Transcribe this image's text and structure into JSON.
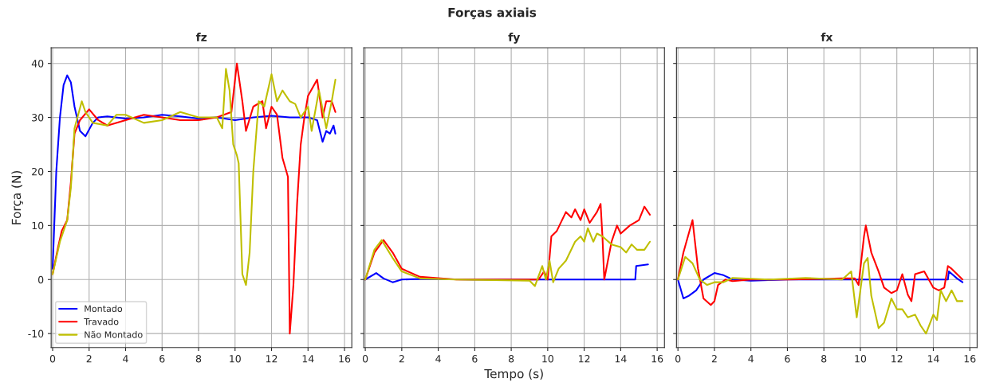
{
  "chart_data": [
    {
      "type": "line",
      "title": "fz",
      "ylabel": "Força (N)",
      "annotations": [
        "Forças axiais"
      ],
      "xlim": [
        -0.08,
        16.4
      ],
      "ylim": [
        -12.6,
        42.9
      ],
      "xticks": [
        0,
        2,
        4,
        6,
        8,
        10,
        12,
        14,
        16
      ],
      "yticks": [
        -10,
        0,
        10,
        20,
        30,
        40
      ],
      "grid": true,
      "legend": "bottom left",
      "series": [
        {
          "name": "Montado",
          "color": "#0000ff",
          "x": [
            0,
            0.2,
            0.4,
            0.6,
            0.8,
            1.0,
            1.2,
            1.5,
            1.8,
            2.2,
            2.5,
            3,
            4,
            5,
            6,
            7,
            8,
            9,
            10,
            11,
            12,
            13,
            14,
            14.5,
            14.8,
            15,
            15.2,
            15.4,
            15.5
          ],
          "values": [
            2,
            20,
            30,
            36,
            37.8,
            36.5,
            32,
            27.5,
            26.5,
            29,
            30,
            30.2,
            29.8,
            30,
            30.5,
            30.2,
            29.8,
            30,
            29.5,
            30,
            30.3,
            30,
            30,
            29.5,
            25.5,
            27.5,
            27,
            28.5,
            27
          ]
        },
        {
          "name": "Travado",
          "color": "#ff0000",
          "x": [
            0,
            0.3,
            0.5,
            0.8,
            1.0,
            1.2,
            1.5,
            2.0,
            2.5,
            3,
            4,
            5,
            6,
            7,
            8,
            9,
            9.8,
            10.1,
            10.4,
            10.6,
            11,
            11.5,
            11.7,
            12,
            12.3,
            12.6,
            12.9,
            13.0,
            13.2,
            13.4,
            13.6,
            13.8,
            14,
            14.5,
            14.8,
            15,
            15.3,
            15.5
          ],
          "values": [
            1,
            6,
            9,
            11,
            18,
            27,
            29.5,
            31.5,
            29.5,
            28.5,
            29.5,
            30.5,
            30,
            29.5,
            29.5,
            30,
            31,
            40,
            33,
            27.5,
            32,
            33,
            28,
            32,
            30.5,
            22.5,
            19,
            -10,
            -1,
            14,
            25,
            30,
            34,
            37,
            30,
            33,
            33,
            31
          ]
        },
        {
          "name": "Não Montado",
          "color": "#bfbf00",
          "x": [
            0,
            0.4,
            0.8,
            1.0,
            1.2,
            1.6,
            1.8,
            2.2,
            3,
            3.5,
            4,
            5,
            6,
            7,
            8,
            9,
            9.3,
            9.5,
            9.7,
            9.9,
            10.1,
            10.2,
            10.4,
            10.6,
            10.8,
            11.0,
            11.3,
            11.6,
            12,
            12.3,
            12.6,
            13,
            13.3,
            13.6,
            14,
            14.2,
            14.6,
            15,
            15.3,
            15.5
          ],
          "values": [
            1,
            7,
            11,
            17,
            28,
            33,
            31,
            29,
            28.5,
            30.5,
            30.5,
            29,
            29.5,
            31,
            30,
            30,
            28,
            39,
            35,
            25,
            23,
            21.5,
            1,
            -1,
            5,
            20,
            33,
            32,
            38,
            33,
            35,
            33,
            32.5,
            30,
            32,
            27.5,
            35,
            28,
            33,
            37
          ]
        }
      ]
    },
    {
      "type": "line",
      "title": "fy",
      "xlabel": "Tempo (s)",
      "tick_labels": "x",
      "xlim": [
        -0.08,
        16.4
      ],
      "ylim": [
        -12.6,
        42.9
      ],
      "xticks": [
        0,
        2,
        4,
        6,
        8,
        10,
        12,
        14,
        16
      ],
      "yticks": [
        -10,
        0,
        10,
        20,
        30,
        40
      ],
      "grid": true,
      "series": [
        {
          "color": "#0000ff",
          "x": [
            0,
            0.6,
            1,
            1.5,
            2,
            3,
            6,
            9,
            12,
            14.8,
            14.85,
            15.5
          ],
          "values": [
            0,
            1.2,
            0.2,
            -0.5,
            0,
            0.1,
            0,
            0,
            0,
            0,
            2.5,
            2.8
          ]
        },
        {
          "color": "#ff0000",
          "x": [
            0,
            0.5,
            1.0,
            1.5,
            2.0,
            3,
            5,
            9,
            9.5,
            9.8,
            10.0,
            10.2,
            10.5,
            11,
            11.3,
            11.5,
            11.8,
            12.0,
            12.3,
            12.7,
            12.9,
            13.0,
            13.1,
            13.5,
            13.8,
            14,
            14.5,
            15.0,
            15.3,
            15.6
          ],
          "values": [
            0,
            5,
            7.3,
            5,
            2,
            0.5,
            0,
            0,
            0,
            1.5,
            0,
            8,
            9,
            12.5,
            11.5,
            13,
            11,
            13,
            10.5,
            12.5,
            14,
            8,
            0,
            7,
            10,
            8.5,
            10,
            11,
            13.5,
            12
          ]
        },
        {
          "color": "#bfbf00",
          "x": [
            0,
            0.5,
            0.9,
            1.5,
            2,
            3,
            5,
            9,
            9.3,
            9.7,
            9.9,
            10.1,
            10.3,
            10.6,
            11,
            11.5,
            11.8,
            12.0,
            12.2,
            12.5,
            12.7,
            13,
            13.5,
            14,
            14.3,
            14.6,
            14.9,
            15.3,
            15.6
          ],
          "values": [
            0,
            5.5,
            7.3,
            4,
            1.5,
            0.2,
            0,
            -0.2,
            -1.2,
            2.5,
            0,
            3.5,
            -0.5,
            2,
            3.5,
            7,
            8,
            7,
            9.5,
            7,
            8.5,
            8,
            6.5,
            6,
            5,
            6.5,
            5.5,
            5.5,
            7
          ]
        }
      ]
    },
    {
      "type": "line",
      "title": "fx",
      "tick_labels": "x",
      "xlim": [
        -0.08,
        16.4
      ],
      "ylim": [
        -12.6,
        42.9
      ],
      "xticks": [
        0,
        2,
        4,
        6,
        8,
        10,
        12,
        14,
        16
      ],
      "yticks": [
        -10,
        0,
        10,
        20,
        30,
        40
      ],
      "grid": true,
      "series": [
        {
          "color": "#0000ff",
          "x": [
            0,
            0.3,
            0.6,
            1.0,
            1.4,
            2.0,
            2.5,
            3,
            4,
            6,
            10,
            14.8,
            14.85,
            15.3,
            15.6
          ],
          "values": [
            0,
            -3.5,
            -3,
            -2,
            0,
            1.2,
            0.8,
            0,
            -0.2,
            0,
            0,
            0,
            1.5,
            0.2,
            -0.5
          ]
        },
        {
          "color": "#ff0000",
          "x": [
            0,
            0.3,
            0.8,
            1.1,
            1.4,
            1.8,
            2.0,
            2.2,
            2.6,
            3,
            4,
            6,
            9,
            9.7,
            9.9,
            10.2,
            10.3,
            10.6,
            11,
            11.3,
            11.7,
            12,
            12.3,
            12.6,
            12.8,
            13,
            13.5,
            14,
            14.3,
            14.6,
            14.8,
            15,
            15.6
          ],
          "values": [
            0,
            5,
            11,
            2,
            -3.5,
            -4.7,
            -4,
            -1,
            0,
            -0.3,
            0,
            0,
            0.2,
            0.2,
            -1,
            8,
            10,
            5,
            1.5,
            -1.5,
            -2.5,
            -2,
            1,
            -2.8,
            -4,
            1,
            1.5,
            -1.5,
            -2,
            -1.5,
            2.5,
            2,
            0
          ]
        },
        {
          "color": "#bfbf00",
          "x": [
            0,
            0.4,
            0.8,
            1.2,
            1.6,
            2.0,
            2.5,
            3,
            5,
            7,
            9,
            9.5,
            9.8,
            10.2,
            10.4,
            10.6,
            11,
            11.3,
            11.7,
            12,
            12.3,
            12.6,
            13,
            13.3,
            13.6,
            14,
            14.2,
            14.4,
            14.7,
            15,
            15.3,
            15.6
          ],
          "values": [
            0,
            4.2,
            3,
            0,
            -1,
            -0.5,
            -0.5,
            0.3,
            0,
            0.3,
            0,
            1.5,
            -7,
            3,
            4,
            -3,
            -9,
            -8,
            -3.5,
            -5.5,
            -5.5,
            -7,
            -6.5,
            -8.5,
            -10,
            -6.5,
            -7.5,
            -2,
            -4,
            -2,
            -4,
            -4
          ]
        }
      ]
    }
  ]
}
